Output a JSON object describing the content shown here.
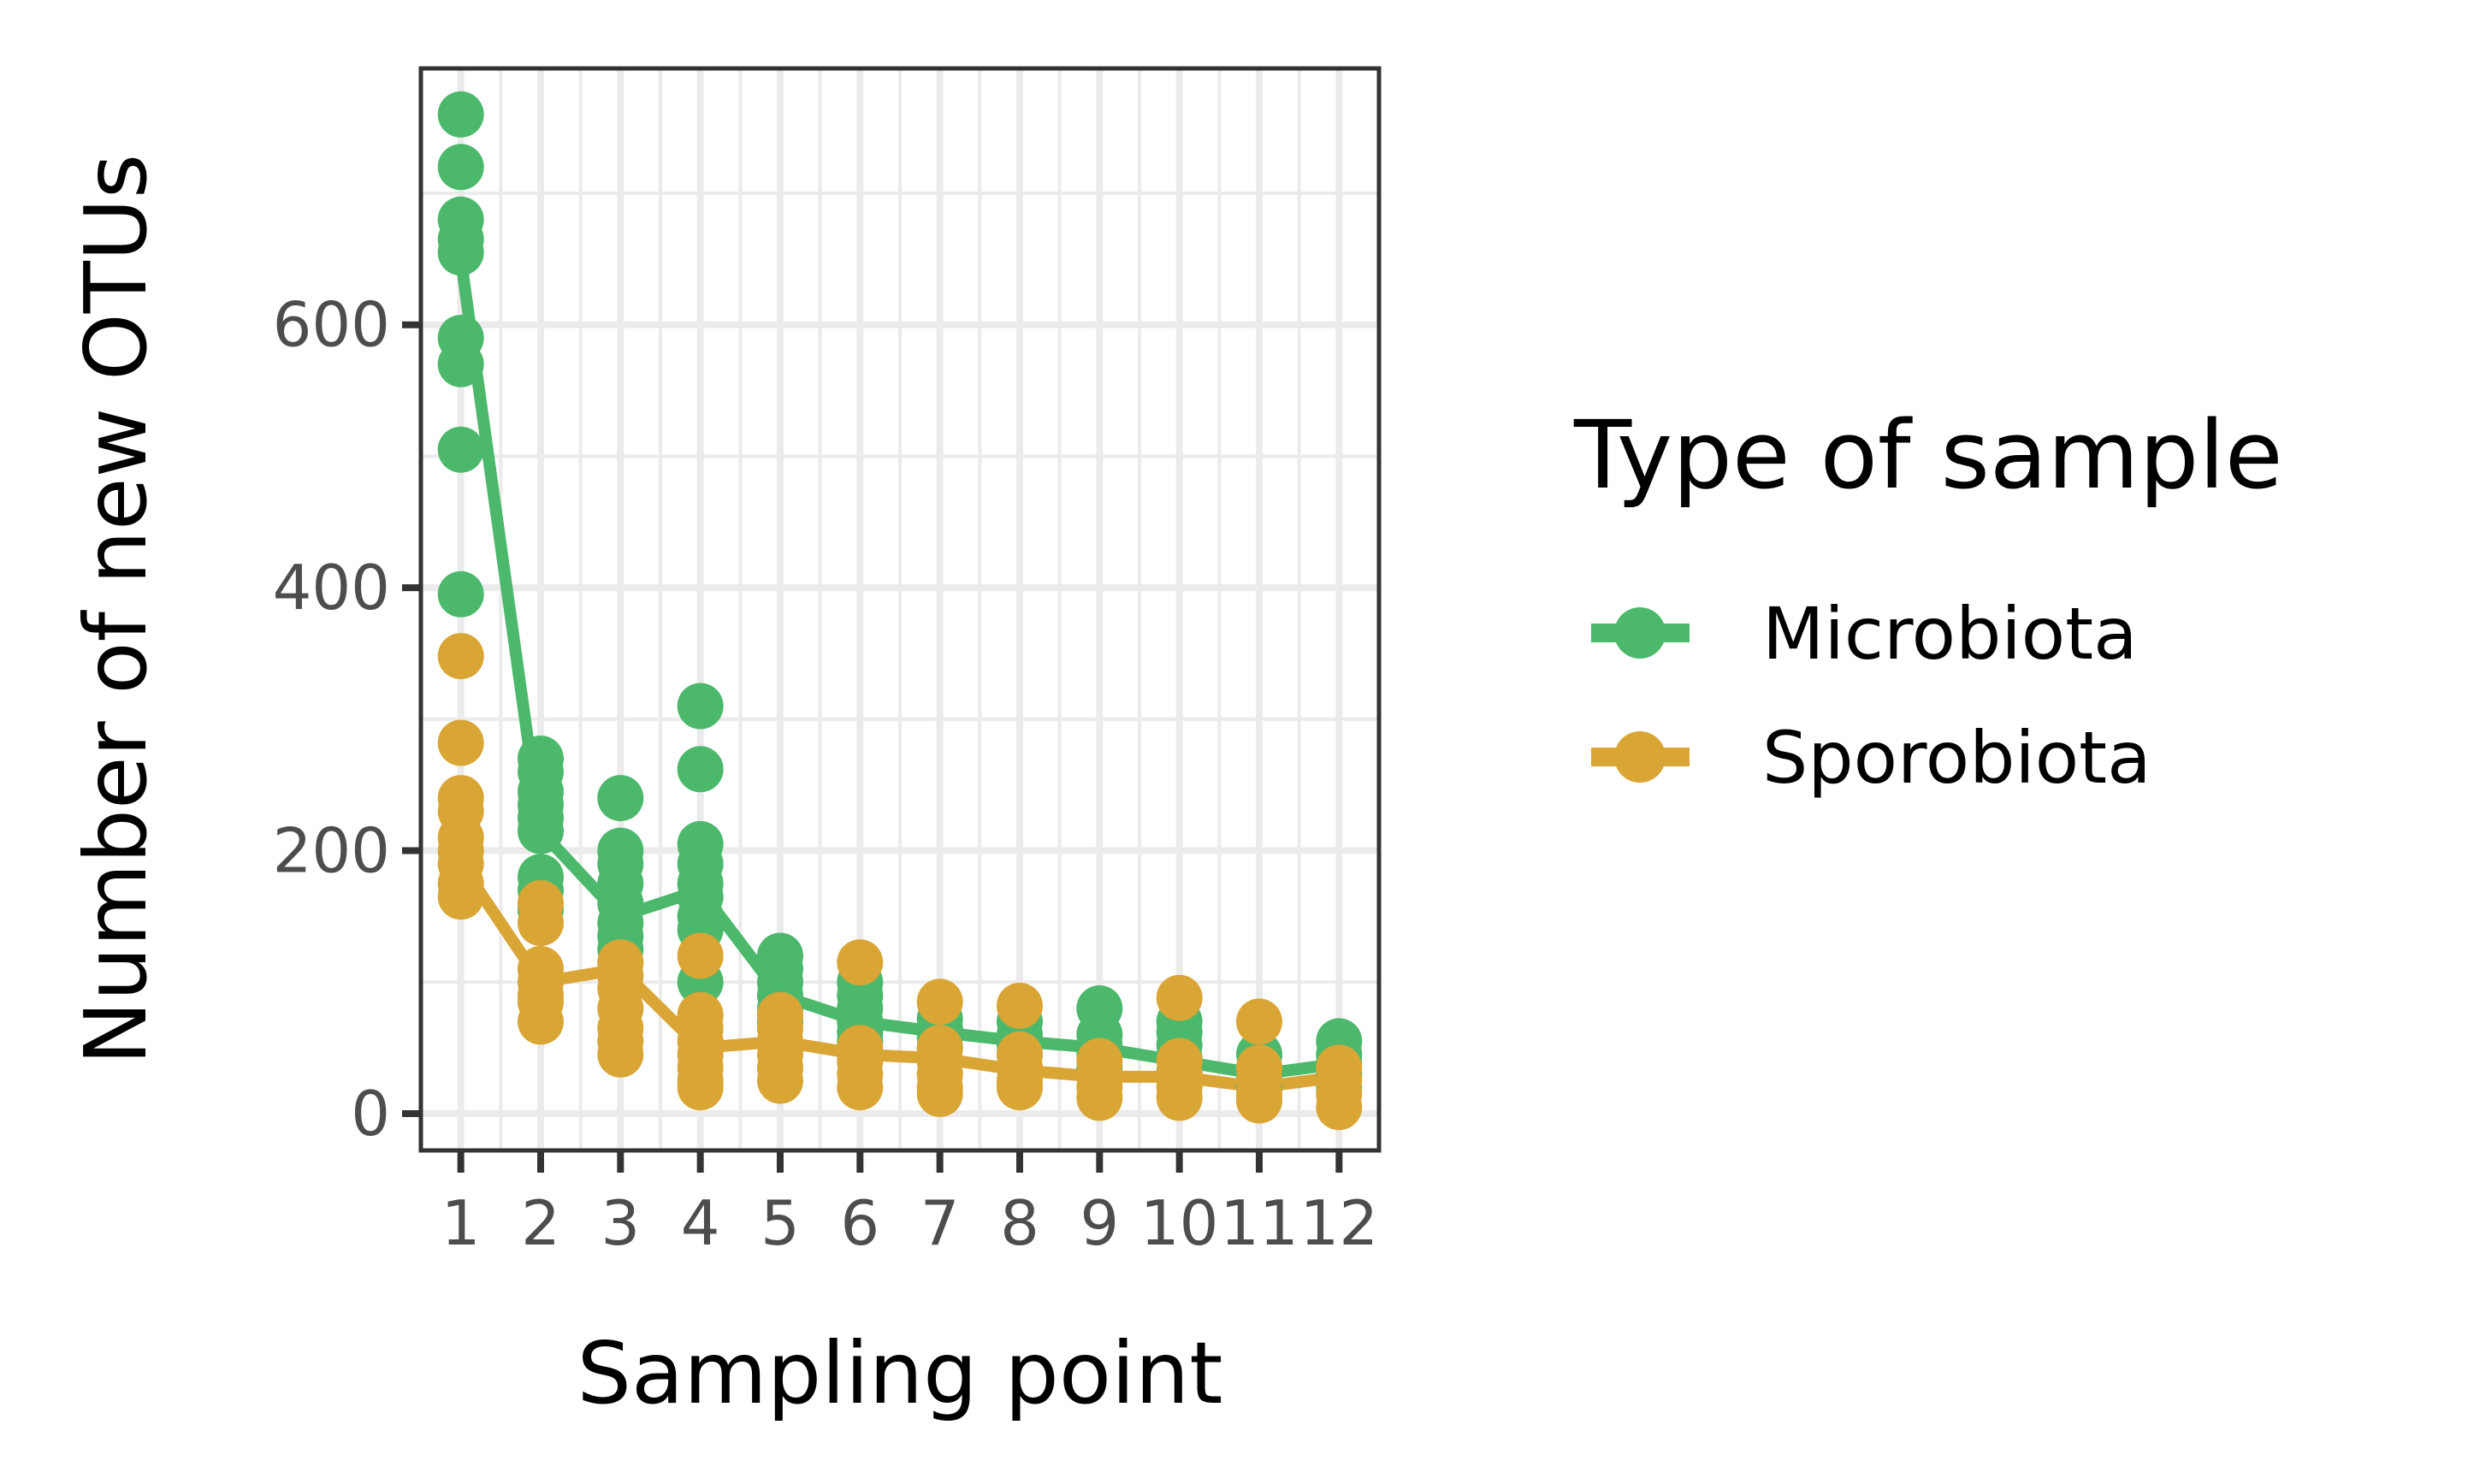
{
  "chart_data": {
    "type": "scatter",
    "xlabel": "Sampling point",
    "ylabel": "Number of new OTUs",
    "x_ticks": [
      "1",
      "2",
      "3",
      "4",
      "5",
      "6",
      "7",
      "8",
      "9",
      "10",
      "11",
      "12"
    ],
    "y_ticks": [
      "0",
      "200",
      "400",
      "600"
    ],
    "xlim": [
      0.5,
      12.5
    ],
    "ylim": [
      -28,
      795
    ],
    "grid": true,
    "legend": {
      "title": "Type of sample",
      "position": "right",
      "entries": [
        "Microbiota",
        "Sporobiota"
      ]
    },
    "series": [
      {
        "name": "Microbiota",
        "color": "#4cb86b",
        "trend": [
          [
            1,
            650
          ],
          [
            2,
            215
          ],
          [
            3,
            150
          ],
          [
            4,
            170
          ],
          [
            5,
            90
          ],
          [
            6,
            70
          ],
          [
            7,
            62
          ],
          [
            8,
            55
          ],
          [
            9,
            50
          ],
          [
            10,
            40
          ],
          [
            11,
            30
          ],
          [
            12,
            38
          ]
        ],
        "points": [
          [
            1,
            760
          ],
          [
            1,
            720
          ],
          [
            1,
            680
          ],
          [
            1,
            665
          ],
          [
            1,
            655
          ],
          [
            1,
            590
          ],
          [
            1,
            570
          ],
          [
            1,
            505
          ],
          [
            1,
            395
          ],
          [
            2,
            270
          ],
          [
            2,
            260
          ],
          [
            2,
            245
          ],
          [
            2,
            235
          ],
          [
            2,
            225
          ],
          [
            2,
            215
          ],
          [
            2,
            180
          ],
          [
            2,
            170
          ],
          [
            2,
            155
          ],
          [
            3,
            240
          ],
          [
            3,
            200
          ],
          [
            3,
            190
          ],
          [
            3,
            175
          ],
          [
            3,
            160
          ],
          [
            3,
            145
          ],
          [
            3,
            135
          ],
          [
            3,
            125
          ],
          [
            3,
            115
          ],
          [
            4,
            310
          ],
          [
            4,
            262
          ],
          [
            4,
            205
          ],
          [
            4,
            190
          ],
          [
            4,
            175
          ],
          [
            4,
            165
          ],
          [
            4,
            150
          ],
          [
            4,
            140
          ],
          [
            4,
            100
          ],
          [
            5,
            120
          ],
          [
            5,
            110
          ],
          [
            5,
            100
          ],
          [
            5,
            90
          ],
          [
            5,
            80
          ],
          [
            5,
            70
          ],
          [
            6,
            100
          ],
          [
            6,
            90
          ],
          [
            6,
            80
          ],
          [
            6,
            70
          ],
          [
            6,
            62
          ],
          [
            6,
            55
          ],
          [
            7,
            72
          ],
          [
            7,
            65
          ],
          [
            7,
            58
          ],
          [
            7,
            50
          ],
          [
            8,
            70
          ],
          [
            8,
            60
          ],
          [
            8,
            52
          ],
          [
            8,
            45
          ],
          [
            9,
            80
          ],
          [
            9,
            60
          ],
          [
            9,
            52
          ],
          [
            9,
            45
          ],
          [
            9,
            35
          ],
          [
            10,
            70
          ],
          [
            10,
            62
          ],
          [
            10,
            52
          ],
          [
            10,
            42
          ],
          [
            10,
            32
          ],
          [
            11,
            45
          ],
          [
            11,
            35
          ],
          [
            11,
            28
          ],
          [
            11,
            20
          ],
          [
            12,
            55
          ],
          [
            12,
            45
          ],
          [
            12,
            38
          ],
          [
            12,
            30
          ],
          [
            12,
            20
          ]
        ]
      },
      {
        "name": "Sporobiota",
        "color": "#d9a535",
        "trend": [
          [
            1,
            190
          ],
          [
            2,
            100
          ],
          [
            3,
            110
          ],
          [
            4,
            50
          ],
          [
            5,
            55
          ],
          [
            6,
            45
          ],
          [
            7,
            42
          ],
          [
            8,
            33
          ],
          [
            9,
            28
          ],
          [
            10,
            28
          ],
          [
            11,
            20
          ],
          [
            12,
            28
          ]
        ],
        "points": [
          [
            1,
            348
          ],
          [
            1,
            282
          ],
          [
            1,
            240
          ],
          [
            1,
            230
          ],
          [
            1,
            210
          ],
          [
            1,
            200
          ],
          [
            1,
            190
          ],
          [
            1,
            175
          ],
          [
            1,
            165
          ],
          [
            2,
            160
          ],
          [
            2,
            145
          ],
          [
            2,
            110
          ],
          [
            2,
            100
          ],
          [
            2,
            90
          ],
          [
            2,
            85
          ],
          [
            2,
            70
          ],
          [
            3,
            115
          ],
          [
            3,
            105
          ],
          [
            3,
            95
          ],
          [
            3,
            80
          ],
          [
            3,
            65
          ],
          [
            3,
            55
          ],
          [
            3,
            45
          ],
          [
            4,
            120
          ],
          [
            4,
            75
          ],
          [
            4,
            65
          ],
          [
            4,
            55
          ],
          [
            4,
            45
          ],
          [
            4,
            35
          ],
          [
            4,
            25
          ],
          [
            4,
            20
          ],
          [
            5,
            75
          ],
          [
            5,
            65
          ],
          [
            5,
            55
          ],
          [
            5,
            45
          ],
          [
            5,
            35
          ],
          [
            5,
            25
          ],
          [
            6,
            115
          ],
          [
            6,
            50
          ],
          [
            6,
            40
          ],
          [
            6,
            30
          ],
          [
            6,
            20
          ],
          [
            7,
            85
          ],
          [
            7,
            50
          ],
          [
            7,
            40
          ],
          [
            7,
            30
          ],
          [
            7,
            20
          ],
          [
            7,
            15
          ],
          [
            8,
            82
          ],
          [
            8,
            45
          ],
          [
            8,
            35
          ],
          [
            8,
            25
          ],
          [
            8,
            20
          ],
          [
            9,
            40
          ],
          [
            9,
            30
          ],
          [
            9,
            20
          ],
          [
            9,
            12
          ],
          [
            10,
            88
          ],
          [
            10,
            40
          ],
          [
            10,
            30
          ],
          [
            10,
            20
          ],
          [
            10,
            12
          ],
          [
            11,
            70
          ],
          [
            11,
            35
          ],
          [
            11,
            25
          ],
          [
            11,
            15
          ],
          [
            11,
            10
          ],
          [
            12,
            35
          ],
          [
            12,
            25
          ],
          [
            12,
            15
          ],
          [
            12,
            5
          ]
        ]
      }
    ]
  }
}
